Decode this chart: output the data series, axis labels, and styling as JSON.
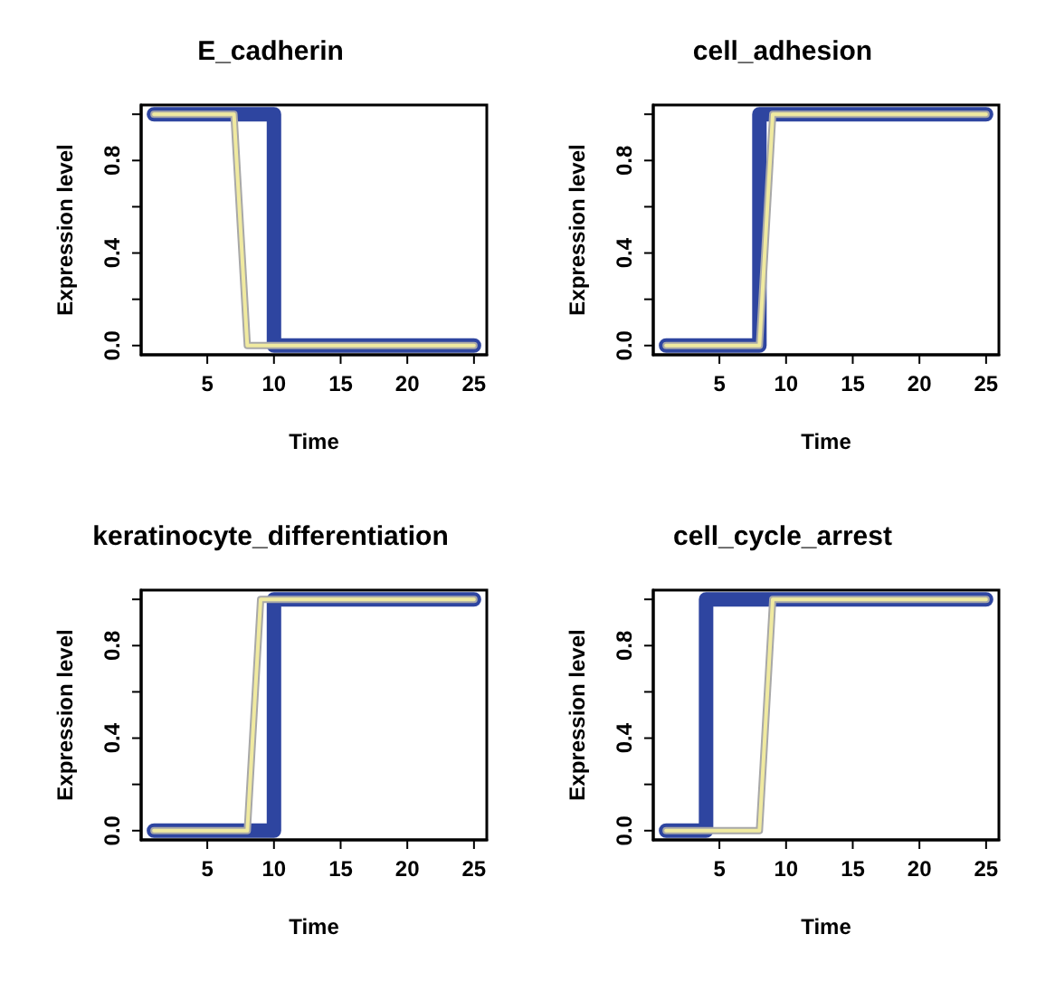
{
  "chart_data": [
    {
      "type": "line",
      "title": "E_cadherin",
      "xlabel": "Time",
      "ylabel": "Expression level",
      "xlim": [
        0.04,
        25.96
      ],
      "ylim": [
        -0.04,
        1.04
      ],
      "xticks": [
        5,
        10,
        15,
        20,
        25
      ],
      "yticks": [
        {
          "value": 0,
          "label": "0.0"
        },
        {
          "value": 0.2,
          "label": null
        },
        {
          "value": 0.4,
          "label": "0.4"
        },
        {
          "value": 0.6,
          "label": null
        },
        {
          "value": 0.8,
          "label": "0.8"
        },
        {
          "value": 1,
          "label": null
        }
      ],
      "marker": "none",
      "series": [
        {
          "color": "#2e45a0",
          "x": [
            1,
            10,
            10,
            25
          ],
          "values": [
            1,
            1,
            0,
            0
          ]
        },
        {
          "color": "#a8a8a8",
          "x": [
            1,
            7,
            8,
            25
          ],
          "values": [
            1,
            1,
            0,
            0
          ]
        },
        {
          "color": "#f0eaa0",
          "x": [
            1,
            7,
            8,
            25
          ],
          "values": [
            1,
            1,
            0,
            0
          ]
        }
      ]
    },
    {
      "type": "line",
      "title": "cell_adhesion",
      "xlabel": "Time",
      "ylabel": "Expression level",
      "xlim": [
        0.04,
        25.96
      ],
      "ylim": [
        -0.04,
        1.04
      ],
      "xticks": [
        5,
        10,
        15,
        20,
        25
      ],
      "yticks": [
        {
          "value": 0,
          "label": "0.0"
        },
        {
          "value": 0.2,
          "label": null
        },
        {
          "value": 0.4,
          "label": "0.4"
        },
        {
          "value": 0.6,
          "label": null
        },
        {
          "value": 0.8,
          "label": "0.8"
        },
        {
          "value": 1,
          "label": null
        }
      ],
      "marker": "none",
      "series": [
        {
          "color": "#2e45a0",
          "x": [
            1,
            8,
            8,
            25
          ],
          "values": [
            0,
            0,
            1,
            1
          ]
        },
        {
          "color": "#a8a8a8",
          "x": [
            1,
            8,
            9,
            25
          ],
          "values": [
            0,
            0,
            1,
            1
          ]
        },
        {
          "color": "#f0eaa0",
          "x": [
            1,
            8,
            9,
            25
          ],
          "values": [
            0,
            0,
            1,
            1
          ]
        }
      ]
    },
    {
      "type": "line",
      "title": "keratinocyte_differentiation",
      "xlabel": "Time",
      "ylabel": "Expression level",
      "xlim": [
        0.04,
        25.96
      ],
      "ylim": [
        -0.04,
        1.04
      ],
      "xticks": [
        5,
        10,
        15,
        20,
        25
      ],
      "yticks": [
        {
          "value": 0,
          "label": "0.0"
        },
        {
          "value": 0.2,
          "label": null
        },
        {
          "value": 0.4,
          "label": "0.4"
        },
        {
          "value": 0.6,
          "label": null
        },
        {
          "value": 0.8,
          "label": "0.8"
        },
        {
          "value": 1,
          "label": null
        }
      ],
      "marker": "none",
      "series": [
        {
          "color": "#2e45a0",
          "x": [
            1,
            10,
            10,
            25
          ],
          "values": [
            0,
            0,
            1,
            1
          ]
        },
        {
          "color": "#a8a8a8",
          "x": [
            1,
            8,
            9,
            25
          ],
          "values": [
            0,
            0,
            1,
            1
          ]
        },
        {
          "color": "#f0eaa0",
          "x": [
            1,
            8,
            9,
            25
          ],
          "values": [
            0,
            0,
            1,
            1
          ]
        }
      ]
    },
    {
      "type": "line",
      "title": "cell_cycle_arrest",
      "xlabel": "Time",
      "ylabel": "Expression level",
      "xlim": [
        0.04,
        25.96
      ],
      "ylim": [
        -0.04,
        1.04
      ],
      "xticks": [
        5,
        10,
        15,
        20,
        25
      ],
      "yticks": [
        {
          "value": 0,
          "label": "0.0"
        },
        {
          "value": 0.2,
          "label": null
        },
        {
          "value": 0.4,
          "label": "0.4"
        },
        {
          "value": 0.6,
          "label": null
        },
        {
          "value": 0.8,
          "label": "0.8"
        },
        {
          "value": 1,
          "label": null
        }
      ],
      "marker": "none",
      "series": [
        {
          "color": "#2e45a0",
          "x": [
            1,
            4,
            4,
            25
          ],
          "values": [
            0,
            0,
            1,
            1
          ]
        },
        {
          "color": "#a8a8a8",
          "x": [
            1,
            8,
            9,
            25
          ],
          "values": [
            0,
            0,
            1,
            1
          ]
        },
        {
          "color": "#f0eaa0",
          "x": [
            1,
            8,
            9,
            25
          ],
          "values": [
            0,
            0,
            1,
            1
          ]
        }
      ]
    }
  ]
}
